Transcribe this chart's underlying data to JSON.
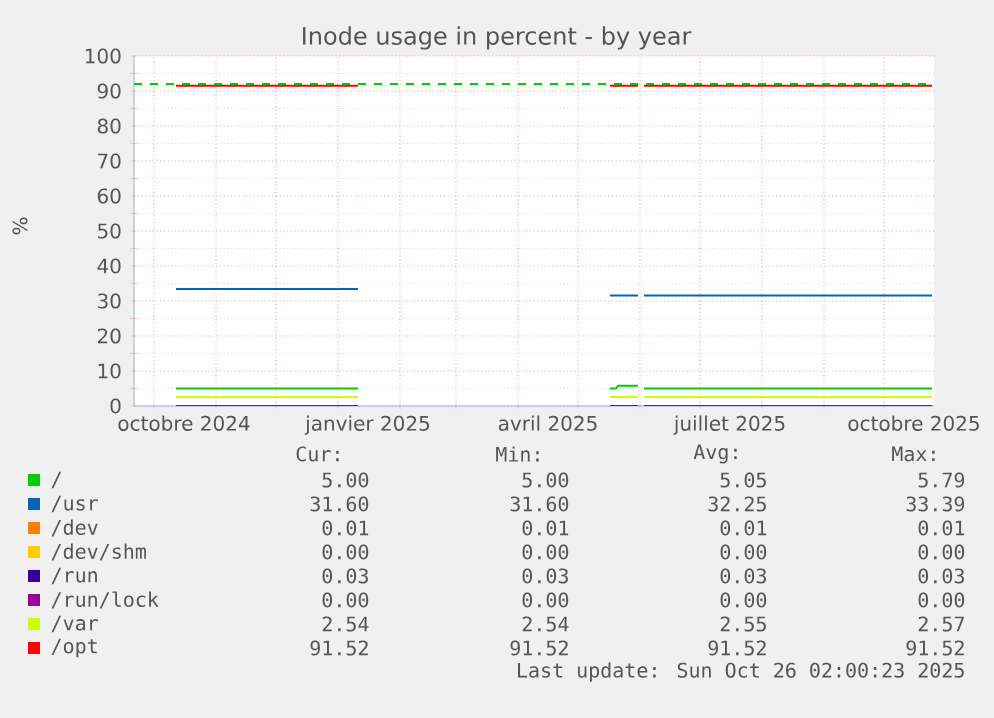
{
  "chart_data": {
    "type": "line",
    "title": "Inode usage in percent - by year",
    "ylabel": "%",
    "x": [
      "2024-10-12",
      "2025-01-11",
      "2025-01-12",
      "2025-05-17",
      "2025-05-20",
      "2025-05-21",
      "2025-05-31",
      "2025-06-01",
      "2025-06-03",
      "2025-10-25"
    ],
    "series": [
      {
        "name": "/",
        "color": "#00cc00",
        "values": [
          5.0,
          5.0,
          null,
          5.0,
          5.0,
          5.79,
          5.79,
          null,
          5.0,
          5.0
        ]
      },
      {
        "name": "/usr",
        "color": "#0066b3",
        "values": [
          33.39,
          33.39,
          null,
          31.6,
          31.6,
          31.6,
          31.6,
          null,
          31.6,
          31.6
        ]
      },
      {
        "name": "/dev",
        "color": "#ff8000",
        "values": [
          null,
          null,
          null,
          null,
          null,
          null,
          null,
          null,
          null,
          null
        ]
      },
      {
        "name": "/dev/shm",
        "color": "#ffcc00",
        "values": [
          null,
          null,
          null,
          null,
          null,
          null,
          null,
          null,
          null,
          null
        ]
      },
      {
        "name": "/run",
        "color": "#330099",
        "values": [
          null,
          null,
          null,
          null,
          null,
          null,
          null,
          null,
          null,
          null
        ]
      },
      {
        "name": "/run/lock",
        "color": "#990099",
        "values": [
          0.0,
          0.0,
          null,
          0.0,
          0.0,
          0.0,
          0.0,
          null,
          0.0,
          0.0
        ]
      },
      {
        "name": "/var",
        "color": "#ccff00",
        "values": [
          2.57,
          2.57,
          null,
          2.54,
          2.54,
          2.54,
          2.54,
          null,
          2.54,
          2.54
        ]
      },
      {
        "name": "/opt",
        "color": "#ff0000",
        "values": [
          91.52,
          91.52,
          null,
          91.52,
          91.52,
          91.52,
          91.52,
          null,
          91.52,
          91.52
        ]
      }
    ],
    "xlim": [
      "2024-09-21",
      "2025-10-26"
    ],
    "xticks": [
      {
        "value": "2024-10-01",
        "label": null
      },
      {
        "value": "2024-10-16",
        "label": "octobre 2024"
      },
      {
        "value": "2024-11-01",
        "label": null
      },
      {
        "value": "2024-12-01",
        "label": null
      },
      {
        "value": "2025-01-01",
        "label": null
      },
      {
        "value": "2025-01-16",
        "label": "janvier 2025"
      },
      {
        "value": "2025-02-01",
        "label": null
      },
      {
        "value": "2025-03-01",
        "label": null
      },
      {
        "value": "2025-04-01",
        "label": null
      },
      {
        "value": "2025-04-16",
        "label": "avril 2025"
      },
      {
        "value": "2025-05-01",
        "label": null
      },
      {
        "value": "2025-06-01",
        "label": null
      },
      {
        "value": "2025-07-01",
        "label": null
      },
      {
        "value": "2025-07-16",
        "label": "juillet 2025"
      },
      {
        "value": "2025-08-01",
        "label": null
      },
      {
        "value": "2025-09-01",
        "label": null
      },
      {
        "value": "2025-10-01",
        "label": null
      },
      {
        "value": "2025-10-16",
        "label": "octobre 2025"
      }
    ],
    "ylim": [
      0,
      100
    ],
    "yticks": [
      0,
      10,
      20,
      30,
      40,
      50,
      60,
      70,
      80,
      90,
      100
    ],
    "grid": true,
    "legend": "bottom",
    "ref_lines": [
      {
        "axis": "y",
        "value": 92,
        "color": "#00cc00",
        "line_style": "dashed"
      }
    ],
    "annotations": [
      "Cur:",
      "Min:",
      "Avg:",
      "Max:",
      "5.00",
      "5.00",
      "5.05",
      "5.79",
      "31.60",
      "31.60",
      "32.25",
      "33.39",
      "0.01",
      "0.01",
      "0.01",
      "0.01",
      "0.00",
      "0.00",
      "0.00",
      "0.00",
      "0.03",
      "0.03",
      "0.03",
      "0.03",
      "0.00",
      "0.00",
      "0.00",
      "0.00",
      "2.54",
      "2.54",
      "2.55",
      "2.57",
      "91.52",
      "91.52",
      "91.52",
      "91.52",
      "Last update: Sun Oct 26 02:00:23 2025"
    ]
  }
}
